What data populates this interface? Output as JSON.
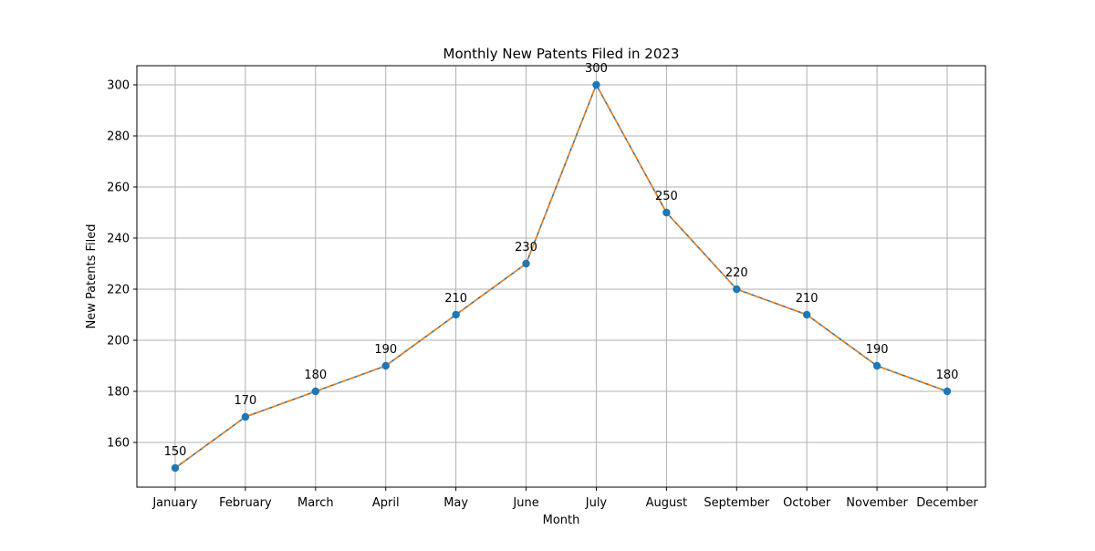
{
  "chart_data": {
    "type": "line",
    "title": "Monthly New Patents Filed in 2023",
    "xlabel": "Month",
    "ylabel": "New Patents Filed",
    "categories": [
      "January",
      "February",
      "March",
      "April",
      "May",
      "June",
      "July",
      "August",
      "September",
      "October",
      "November",
      "December"
    ],
    "series": [
      {
        "values": [
          150,
          170,
          180,
          190,
          210,
          230,
          300,
          250,
          220,
          210,
          190,
          180
        ]
      }
    ],
    "data_labels": [
      "150",
      "170",
      "180",
      "190",
      "210",
      "230",
      "300",
      "250",
      "220",
      "210",
      "190",
      "180"
    ],
    "ylim": [
      142.5,
      307.5
    ],
    "yticks": [
      160,
      180,
      200,
      220,
      240,
      260,
      280,
      300
    ],
    "ytick_labels": [
      "160",
      "180",
      "200",
      "220",
      "240",
      "260",
      "280",
      "300"
    ],
    "grid": true,
    "legend": "none",
    "colors": {
      "marker": "#1f77b4",
      "line_dashed": "#ff7f0e",
      "line_solid": "#1f77b4",
      "grid": "#b0b0b0",
      "axes": "#000000"
    }
  }
}
